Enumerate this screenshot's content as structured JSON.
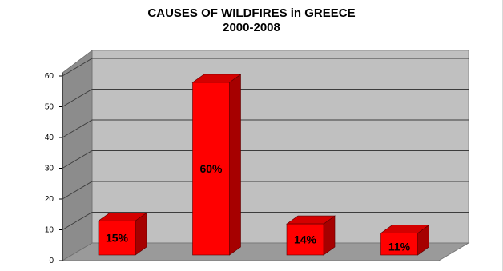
{
  "chart_data": {
    "type": "bar",
    "title": "CAUSES OF WILDFIRES in GREECE",
    "subtitle": "2000-2008",
    "categories": [
      "",
      "",
      "",
      ""
    ],
    "values": [
      15,
      60,
      14,
      11
    ],
    "data_labels": [
      "15%",
      "60%",
      "14%",
      "11%"
    ],
    "y_ticks": [
      0,
      10,
      20,
      30,
      40,
      50,
      60
    ],
    "ylim": [
      0,
      60
    ],
    "grid": true,
    "legend": "none",
    "three_d": true,
    "colors": {
      "bar_front": "#ff0000",
      "bar_top": "#d40000",
      "bar_side": "#a60000",
      "back_wall": "#c0c0c0",
      "side_wall": "#8c8c8c",
      "floor": "#9a9a9a",
      "gridline": "#3c3c3c"
    }
  }
}
